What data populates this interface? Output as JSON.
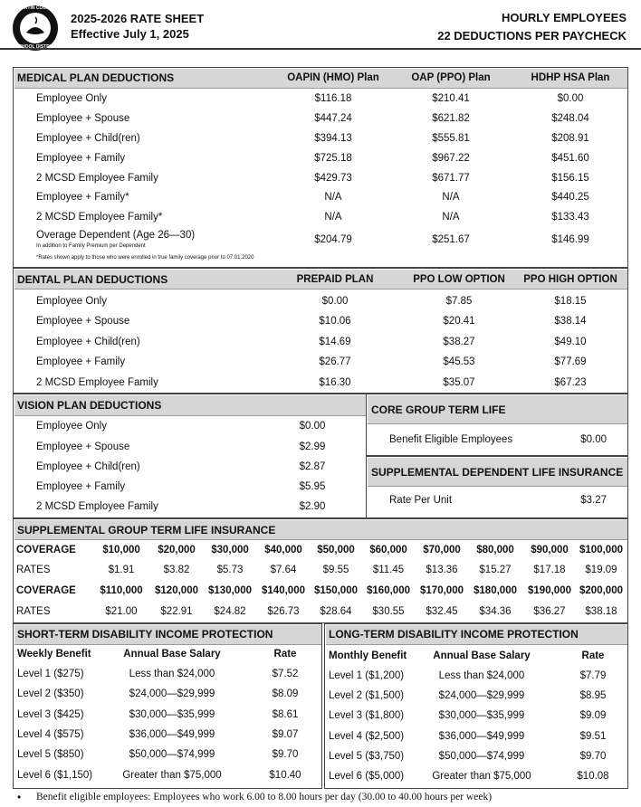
{
  "header": {
    "title": "2025-2026 RATE SHEET",
    "effective": "Effective July 1, 2025",
    "right_title": "HOURLY EMPLOYEES",
    "right_subtitle": "22 DEDUCTIONS PER PAYCHECK",
    "logo_text": [
      "MARTIN COUNTY",
      "SCHOOL DISTRICT"
    ]
  },
  "medical": {
    "title": "MEDICAL PLAN DEDUCTIONS",
    "columns": [
      "OAPIN (HMO) Plan",
      "OAP (PPO) Plan",
      "HDHP HSA Plan"
    ],
    "rows": [
      [
        "Employee Only",
        "$116.18",
        "$210.41",
        "$0.00"
      ],
      [
        "Employee + Spouse",
        "$447.24",
        "$621.82",
        "$248.04"
      ],
      [
        "Employee + Child(ren)",
        "$394.13",
        "$555.81",
        "$208.91"
      ],
      [
        "Employee + Family",
        "$725.18",
        "$967.22",
        "$451.60"
      ],
      [
        "2 MCSD Employee Family",
        "$429.73",
        "$671.77",
        "$156.15"
      ],
      [
        "Employee + Family*",
        "N/A",
        "N/A",
        "$440.25"
      ],
      [
        "2 MCSD Employee Family*",
        "N/A",
        "N/A",
        "$133.43"
      ],
      [
        "Overage Dependent (Age 26—30)",
        "$204.79",
        "$251.67",
        "$146.99"
      ]
    ],
    "overage_note": "In addition to Family Premium per Dependent",
    "footnote": "*Rates shown apply to those who were enrolled in true family coverage prior to 07.01.2020"
  },
  "dental": {
    "title": "DENTAL PLAN DEDUCTIONS",
    "columns": [
      "PREPAID PLAN",
      "PPO LOW OPTION",
      "PPO HIGH OPTION"
    ],
    "rows": [
      [
        "Employee Only",
        "$0.00",
        "$7.85",
        "$18.15"
      ],
      [
        "Employee + Spouse",
        "$10.06",
        "$20.41",
        "$38.14"
      ],
      [
        "Employee + Child(ren)",
        "$14.69",
        "$38.27",
        "$49.10"
      ],
      [
        "Employee + Family",
        "$26.77",
        "$45.53",
        "$77.69"
      ],
      [
        "2 MCSD Employee Family",
        "$16.30",
        "$35.07",
        "$67.23"
      ]
    ]
  },
  "vision": {
    "title": "VISION PLAN DEDUCTIONS",
    "rows": [
      [
        "Employee Only",
        "$0.00"
      ],
      [
        "Employee + Spouse",
        "$2.99"
      ],
      [
        "Employee + Child(ren)",
        "$2.87"
      ],
      [
        "Employee + Family",
        "$5.95"
      ],
      [
        "2 MCSD Employee Family",
        "$2.90"
      ]
    ]
  },
  "core_life": {
    "title": "CORE GROUP TERM LIFE",
    "rows": [
      [
        "Benefit Eligible Employees",
        "$0.00"
      ]
    ]
  },
  "supp_dependent_life": {
    "title": "SUPPLEMENTAL DEPENDENT LIFE INSURANCE",
    "rows": [
      [
        "Rate Per Unit",
        "$3.27"
      ]
    ]
  },
  "supp_group_life": {
    "title": "SUPPLEMENTAL GROUP TERM LIFE INSURANCE",
    "groups": [
      {
        "coverage_label": "COVERAGE",
        "coverage": [
          "$10,000",
          "$20,000",
          "$30,000",
          "$40,000",
          "$50,000",
          "$60,000",
          "$70,000",
          "$80,000",
          "$90,000",
          "$100,000"
        ],
        "rates_label": "RATES",
        "rates": [
          "$1.91",
          "$3.82",
          "$5.73",
          "$7.64",
          "$9.55",
          "$11.45",
          "$13.36",
          "$15.27",
          "$17.18",
          "$19.09"
        ]
      },
      {
        "coverage_label": "COVERAGE",
        "coverage": [
          "$110,000",
          "$120,000",
          "$130,000",
          "$140,000",
          "$150,000",
          "$160,000",
          "$170,000",
          "$180,000",
          "$190,000",
          "$200,000"
        ],
        "rates_label": "RATES",
        "rates": [
          "$21.00",
          "$22.91",
          "$24.82",
          "$26.73",
          "$28.64",
          "$30.55",
          "$32.45",
          "$34.36",
          "$36.27",
          "$38.18"
        ]
      }
    ]
  },
  "short_term_disability": {
    "title": "SHORT-TERM DISABILITY INCOME PROTECTION",
    "columns": [
      "Weekly Benefit",
      "Annual Base Salary",
      "Rate"
    ],
    "rows": [
      [
        "Level 1 ($275)",
        "Less than $24,000",
        "$7.52"
      ],
      [
        "Level 2 ($350)",
        "$24,000—$29,999",
        "$8.09"
      ],
      [
        "Level 3 ($425)",
        "$30,000—$35,999",
        "$8.61"
      ],
      [
        "Level 4 ($575)",
        "$36,000—$49,999",
        "$9.07"
      ],
      [
        "Level 5 ($850)",
        "$50,000—$74,999",
        "$9.70"
      ],
      [
        "Level 6 ($1,150)",
        "Greater than $75,000",
        "$10.40"
      ]
    ]
  },
  "long_term_disability": {
    "title": "LONG-TERM DISABILITY INCOME PROTECTION",
    "columns": [
      "Monthly Benefit",
      "Annual Base Salary",
      "Rate"
    ],
    "rows": [
      [
        "Level 1 ($1,200)",
        "Less than $24,000",
        "$7.79"
      ],
      [
        "Level 2 ($1,500)",
        "$24,000—$29,999",
        "$8.95"
      ],
      [
        "Level 3 ($1,800)",
        "$30,000—$35,999",
        "$9.09"
      ],
      [
        "Level 4 ($2,500)",
        "$36,000—$49,999",
        "$9.51"
      ],
      [
        "Level 5 ($3,750)",
        "$50,000—$74,999",
        "$9.70"
      ],
      [
        "Level 6 ($5,000)",
        "Greater than $75,000",
        "$10.08"
      ]
    ]
  },
  "footnote": "Benefit eligible employees: Employees who work 6.00 to 8.00 hours per day (30.00 to 40.00 hours per week)"
}
